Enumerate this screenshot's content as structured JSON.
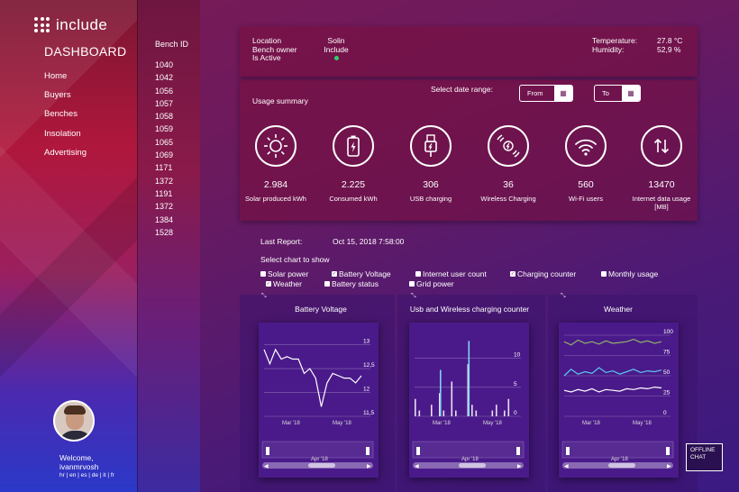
{
  "brand": {
    "logo_text": "include"
  },
  "sidebar": {
    "title": "DASHBOARD",
    "items": [
      "Home",
      "Buyers",
      "Benches",
      "Insolation",
      "Advertising"
    ]
  },
  "bench": {
    "title": "Bench ID",
    "ids": [
      "1040",
      "1042",
      "1056",
      "1057",
      "1058",
      "1059",
      "1065",
      "1069",
      "1171",
      "1372",
      "1191",
      "1372",
      "1384",
      "1528"
    ]
  },
  "user": {
    "welcome": "Welcome,",
    "name": "ivanmrvosh",
    "languages": "hr | en | es | de | it | fr"
  },
  "info": {
    "location_label": "Location",
    "location_value": "Solin",
    "owner_label": "Bench owner",
    "owner_value": "Include",
    "active_label": "Is Active",
    "active_color": "#2fd06a",
    "temp_label": "Temperature:",
    "temp_value": "27.8 °C",
    "hum_label": "Humidity:",
    "hum_value": "52,9 %"
  },
  "usage": {
    "title": "Usage summary",
    "date_label": "Select date range:",
    "from_label": "From",
    "to_label": "To",
    "stats": [
      {
        "icon": "sun-icon",
        "value": "2.984",
        "label": "Solar produced kWh"
      },
      {
        "icon": "battery-icon",
        "value": "2.225",
        "label": "Consumed kWh"
      },
      {
        "icon": "usb-icon",
        "value": "306",
        "label": "USB charging"
      },
      {
        "icon": "wireless-charging-icon",
        "value": "36",
        "label": "Wireless Charging"
      },
      {
        "icon": "wifi-icon",
        "value": "560",
        "label": "Wi-Fi users"
      },
      {
        "icon": "data-transfer-icon",
        "value": "13470",
        "label": "Internet data usage [MB]"
      }
    ]
  },
  "report": {
    "label": "Last Report:",
    "value": "Oct 15, 2018 7:58:00"
  },
  "select_chart": {
    "title": "Select chart to show",
    "options": [
      {
        "label": "Solar power",
        "checked": false
      },
      {
        "label": "Battery Voltage",
        "checked": true
      },
      {
        "label": "Internet user count",
        "checked": false
      },
      {
        "label": "Charging counter",
        "checked": true
      },
      {
        "label": "Monthly usage",
        "checked": false
      },
      {
        "label": "Weather",
        "checked": true
      },
      {
        "label": "Battery status",
        "checked": false
      },
      {
        "label": "Grid power",
        "checked": false
      }
    ]
  },
  "charts": {
    "battery": {
      "title": "Battery Voltage",
      "yticks": [
        "13",
        "12,5",
        "12",
        "11,5"
      ],
      "xticks": [
        "Mar '18",
        "May '18"
      ],
      "nav_label": "Apr '18"
    },
    "usb": {
      "title": "Usb and Wireless charging counter",
      "yticks": [
        "10",
        "5",
        "0"
      ],
      "xticks": [
        "Mar '18",
        "May '18"
      ],
      "nav_label": "Apr '18"
    },
    "weather": {
      "title": "Weather",
      "yticks": [
        "100",
        "75",
        "50",
        "25",
        "0"
      ],
      "xticks": [
        "Mar '18",
        "May '18"
      ],
      "nav_label": "Apr '18"
    }
  },
  "chart_data": [
    {
      "type": "line",
      "title": "Battery Voltage",
      "ylim": [
        11.5,
        13.2
      ],
      "series": [
        {
          "values": [
            12.9,
            12.6,
            12.9,
            12.7,
            12.75,
            12.7,
            12.7,
            12.4,
            12.5,
            12.3,
            11.7,
            12.2,
            12.4,
            12.35,
            12.3,
            12.3,
            12.2,
            12.35
          ]
        }
      ]
    },
    {
      "type": "bar",
      "title": "Usb and Wireless charging counter",
      "ylim": [
        0,
        14
      ],
      "series": [
        {
          "values": [
            3,
            1,
            0,
            0,
            2,
            0,
            4,
            1,
            0,
            6,
            1,
            0,
            0,
            9,
            2,
            1,
            0,
            0,
            0,
            1,
            2,
            0,
            1,
            3
          ]
        },
        {
          "values": [
            0,
            0,
            0,
            0,
            0,
            0,
            8,
            0,
            0,
            0,
            0,
            0,
            0,
            13,
            0,
            0,
            0,
            0,
            0,
            0,
            0,
            0,
            0,
            0
          ]
        }
      ]
    },
    {
      "type": "line",
      "title": "Weather",
      "ylim": [
        0,
        100
      ],
      "series": [
        {
          "color": "#8fb06a",
          "values": [
            92,
            88,
            94,
            90,
            92,
            89,
            93,
            90,
            91,
            92,
            95,
            91,
            93,
            90,
            92
          ]
        },
        {
          "color": "#5ac8f0",
          "values": [
            50,
            58,
            52,
            55,
            53,
            60,
            54,
            56,
            52,
            55,
            58,
            54,
            56,
            55,
            57
          ]
        },
        {
          "color": "#ffffff",
          "values": [
            32,
            30,
            33,
            31,
            34,
            30,
            33,
            32,
            31,
            34,
            33,
            35,
            34,
            36,
            35
          ]
        }
      ]
    }
  ]
}
